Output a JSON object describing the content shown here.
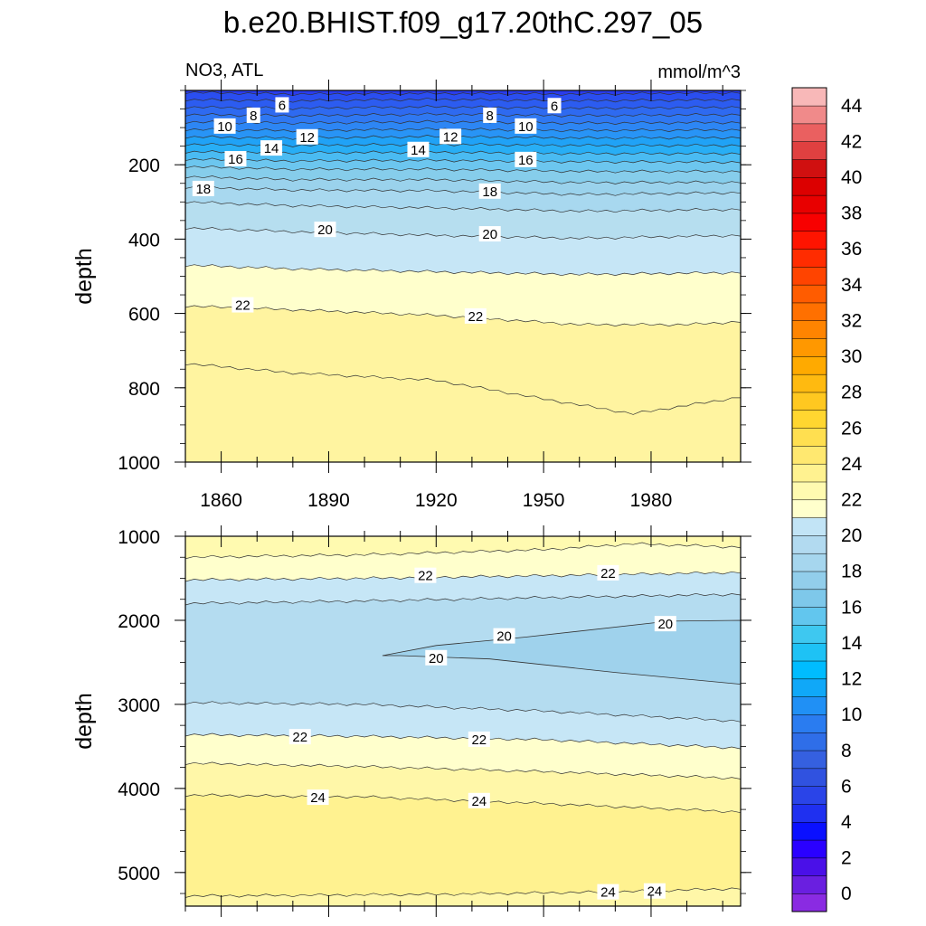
{
  "title": "b.e20.BHIST.f09_g17.20thC.297_05",
  "upper_left_label": "NO3, ATL",
  "upper_right_label": "mmol/m^3",
  "chart_data": [
    {
      "type": "contour",
      "panel": "upper",
      "ylabel": "depth",
      "xlim": [
        1850,
        2005
      ],
      "ylim": [
        1000,
        0
      ],
      "y_reversed": true,
      "x_tick_labels": [
        "1860",
        "1890",
        "1920",
        "1950",
        "1980"
      ],
      "x_ticks": [
        1860,
        1890,
        1920,
        1950,
        1980
      ],
      "y_tick_labels": [
        "200",
        "400",
        "600",
        "800",
        "1000"
      ],
      "y_ticks": [
        200,
        400,
        600,
        800,
        1000
      ],
      "contour_levels": [
        6,
        7,
        8,
        9,
        10,
        11,
        12,
        13,
        14,
        15,
        16,
        17,
        18,
        19,
        20,
        21,
        22,
        23
      ],
      "contour_depths": [
        {
          "level": 6,
          "depths": [
            [
              1850,
              5
            ],
            [
              1880,
              10
            ],
            [
              1920,
              8
            ],
            [
              1960,
              10
            ],
            [
              2005,
              6
            ]
          ]
        },
        {
          "level": 7,
          "depths": [
            [
              1850,
              25
            ],
            [
              1880,
              28
            ],
            [
              1920,
              24
            ],
            [
              1960,
              28
            ],
            [
              2005,
              25
            ]
          ]
        },
        {
          "level": 8,
          "depths": [
            [
              1850,
              45
            ],
            [
              1880,
              48
            ],
            [
              1920,
              44
            ],
            [
              1960,
              48
            ],
            [
              2005,
              45
            ]
          ]
        },
        {
          "level": 9,
          "depths": [
            [
              1850,
              65
            ],
            [
              1880,
              68
            ],
            [
              1920,
              64
            ],
            [
              1960,
              68
            ],
            [
              2005,
              65
            ]
          ]
        },
        {
          "level": 10,
          "depths": [
            [
              1850,
              85
            ],
            [
              1880,
              88
            ],
            [
              1920,
              84
            ],
            [
              1960,
              88
            ],
            [
              2005,
              86
            ]
          ]
        },
        {
          "level": 11,
          "depths": [
            [
              1850,
              105
            ],
            [
              1880,
              108
            ],
            [
              1920,
              104
            ],
            [
              1960,
              108
            ],
            [
              2005,
              106
            ]
          ]
        },
        {
          "level": 12,
          "depths": [
            [
              1850,
              125
            ],
            [
              1880,
              128
            ],
            [
              1920,
              124
            ],
            [
              1960,
              128
            ],
            [
              2005,
              127
            ]
          ]
        },
        {
          "level": 13,
          "depths": [
            [
              1850,
              145
            ],
            [
              1880,
              148
            ],
            [
              1920,
              145
            ],
            [
              1960,
              148
            ],
            [
              2005,
              148
            ]
          ]
        },
        {
          "level": 14,
          "depths": [
            [
              1850,
              165
            ],
            [
              1880,
              168
            ],
            [
              1920,
              166
            ],
            [
              1960,
              170
            ],
            [
              2005,
              170
            ]
          ]
        },
        {
          "level": 15,
          "depths": [
            [
              1850,
              185
            ],
            [
              1880,
              190
            ],
            [
              1920,
              188
            ],
            [
              1960,
              192
            ],
            [
              2005,
              193
            ]
          ]
        },
        {
          "level": 16,
          "depths": [
            [
              1850,
              205
            ],
            [
              1880,
              212
            ],
            [
              1920,
              212
            ],
            [
              1960,
              218
            ],
            [
              2005,
              218
            ]
          ]
        },
        {
          "level": 17,
          "depths": [
            [
              1850,
              232
            ],
            [
              1880,
              240
            ],
            [
              1920,
              240
            ],
            [
              1960,
              248
            ],
            [
              2005,
              247
            ]
          ]
        },
        {
          "level": 18,
          "depths": [
            [
              1850,
              260
            ],
            [
              1880,
              268
            ],
            [
              1920,
              270
            ],
            [
              1960,
              280
            ],
            [
              2005,
              275
            ]
          ]
        },
        {
          "level": 19,
          "depths": [
            [
              1850,
              300
            ],
            [
              1880,
              310
            ],
            [
              1920,
              316
            ],
            [
              1960,
              325
            ],
            [
              2005,
              320
            ]
          ]
        },
        {
          "level": 20,
          "depths": [
            [
              1850,
              370
            ],
            [
              1880,
              380
            ],
            [
              1920,
              390
            ],
            [
              1960,
              398
            ],
            [
              2005,
              390
            ]
          ]
        },
        {
          "level": 21,
          "depths": [
            [
              1850,
              470
            ],
            [
              1880,
              480
            ],
            [
              1920,
              488
            ],
            [
              1960,
              495
            ],
            [
              2005,
              490
            ]
          ]
        },
        {
          "level": 22,
          "depths": [
            [
              1850,
              580
            ],
            [
              1880,
              590
            ],
            [
              1920,
              605
            ],
            [
              1960,
              630
            ],
            [
              1990,
              630
            ],
            [
              2005,
              622
            ]
          ]
        },
        {
          "level": 23,
          "depths": [
            [
              1850,
              735
            ],
            [
              1880,
              760
            ],
            [
              1920,
              780
            ],
            [
              1950,
              830
            ],
            [
              1975,
              870
            ],
            [
              2005,
              825
            ]
          ]
        }
      ],
      "contour_labels": [
        {
          "text": "6",
          "x": 1877,
          "y": 40
        },
        {
          "text": "6",
          "x": 1953,
          "y": 42
        },
        {
          "text": "8",
          "x": 1869,
          "y": 68
        },
        {
          "text": "8",
          "x": 1935,
          "y": 68
        },
        {
          "text": "10",
          "x": 1861,
          "y": 97
        },
        {
          "text": "10",
          "x": 1945,
          "y": 97
        },
        {
          "text": "12",
          "x": 1884,
          "y": 126
        },
        {
          "text": "12",
          "x": 1924,
          "y": 125
        },
        {
          "text": "14",
          "x": 1874,
          "y": 156
        },
        {
          "text": "14",
          "x": 1915,
          "y": 160
        },
        {
          "text": "16",
          "x": 1864,
          "y": 185
        },
        {
          "text": "16",
          "x": 1945,
          "y": 187
        },
        {
          "text": "18",
          "x": 1855,
          "y": 265
        },
        {
          "text": "18",
          "x": 1935,
          "y": 272
        },
        {
          "text": "20",
          "x": 1889,
          "y": 375
        },
        {
          "text": "20",
          "x": 1935,
          "y": 387
        },
        {
          "text": "22",
          "x": 1866,
          "y": 578
        },
        {
          "text": "22",
          "x": 1931,
          "y": 608
        }
      ]
    },
    {
      "type": "contour",
      "panel": "lower",
      "ylabel": "depth",
      "xlim": [
        1850,
        2005
      ],
      "ylim": [
        5400,
        1000
      ],
      "y_reversed": true,
      "y_tick_labels": [
        "1000",
        "2000",
        "3000",
        "4000",
        "5000"
      ],
      "y_ticks": [
        1000,
        2000,
        3000,
        4000,
        5000
      ],
      "contour_levels": [
        22,
        21,
        20,
        21,
        22,
        23,
        24,
        24
      ],
      "contour_depths": [
        {
          "level": 23,
          "depths": [
            [
              1850,
              1250
            ],
            [
              1900,
              1220
            ],
            [
              1950,
              1160
            ],
            [
              1975,
              1090
            ],
            [
              2005,
              1130
            ]
          ]
        },
        {
          "level": 22,
          "depths": [
            [
              1850,
              1520
            ],
            [
              1900,
              1500
            ],
            [
              1950,
              1470
            ],
            [
              2005,
              1430
            ]
          ]
        },
        {
          "level": 21,
          "depths": [
            [
              1850,
              1800
            ],
            [
              1900,
              1770
            ],
            [
              1950,
              1730
            ],
            [
              2005,
              1690
            ]
          ]
        },
        {
          "level": 21,
          "depths": [
            [
              1850,
              2980
            ],
            [
              1900,
              3000
            ],
            [
              1950,
              3080
            ],
            [
              2005,
              3200
            ]
          ]
        },
        {
          "level": 22,
          "depths": [
            [
              1850,
              3360
            ],
            [
              1900,
              3380
            ],
            [
              1950,
              3420
            ],
            [
              2005,
              3520
            ]
          ]
        },
        {
          "level": 23,
          "depths": [
            [
              1850,
              3700
            ],
            [
              1900,
              3740
            ],
            [
              1950,
              3800
            ],
            [
              2005,
              3880
            ]
          ]
        },
        {
          "level": 24,
          "depths": [
            [
              1850,
              4080
            ],
            [
              1900,
              4100
            ],
            [
              1950,
              4180
            ],
            [
              2005,
              4280
            ]
          ]
        },
        {
          "level": 24,
          "depths": [
            [
              1850,
              5280
            ],
            [
              1920,
              5260
            ],
            [
              1970,
              5230
            ],
            [
              2005,
              5190
            ]
          ]
        }
      ],
      "closed_contour_20": [
        [
          1905,
          2420
        ],
        [
          1920,
          2300
        ],
        [
          1945,
          2200
        ],
        [
          1985,
          2010
        ],
        [
          2005,
          2000
        ],
        [
          2005,
          2760
        ],
        [
          1970,
          2620
        ],
        [
          1935,
          2460
        ],
        [
          1910,
          2420
        ]
      ],
      "contour_labels": [
        {
          "text": "22",
          "x": 1917,
          "y": 1470
        },
        {
          "text": "22",
          "x": 1968,
          "y": 1440
        },
        {
          "text": "20",
          "x": 1939,
          "y": 2190
        },
        {
          "text": "20",
          "x": 1920,
          "y": 2450
        },
        {
          "text": "20",
          "x": 1984,
          "y": 2045
        },
        {
          "text": "22",
          "x": 1882,
          "y": 3390
        },
        {
          "text": "22",
          "x": 1932,
          "y": 3420
        },
        {
          "text": "24",
          "x": 1887,
          "y": 4110
        },
        {
          "text": "24",
          "x": 1932,
          "y": 4150
        },
        {
          "text": "24",
          "x": 1968,
          "y": 5235
        },
        {
          "text": "24",
          "x": 1981,
          "y": 5225
        }
      ]
    }
  ],
  "colorbar": {
    "tick_labels": [
      "0",
      "2",
      "4",
      "6",
      "8",
      "10",
      "12",
      "14",
      "16",
      "18",
      "20",
      "22",
      "24",
      "26",
      "28",
      "30",
      "32",
      "34",
      "36",
      "38",
      "40",
      "42",
      "44"
    ],
    "colors": [
      "#8a2be2",
      "#6a1fe0",
      "#4a10e8",
      "#2a00ff",
      "#0a10ff",
      "#1f30f0",
      "#2a44e8",
      "#3052e0",
      "#3560e0",
      "#2f6ee8",
      "#2a7cf0",
      "#2090f5",
      "#10a8f8",
      "#00bcff",
      "#1ec2f5",
      "#3ec8f0",
      "#62c6ee",
      "#7ec8ea",
      "#92ceeb",
      "#a6d6ee",
      "#b2daf0",
      "#c2e4f6",
      "#ffffcc",
      "#fffab0",
      "#fff290",
      "#ffe870",
      "#ffdf50",
      "#ffd630",
      "#ffc820",
      "#ffba10",
      "#ffaa00",
      "#ff9800",
      "#ff8400",
      "#ff7000",
      "#ff5c00",
      "#ff4400",
      "#ff2c00",
      "#ff1400",
      "#f80000",
      "#e80000",
      "#dc0000",
      "#d01010",
      "#e04040",
      "#ea6060",
      "#f08a8a",
      "#f8b8b8"
    ]
  }
}
